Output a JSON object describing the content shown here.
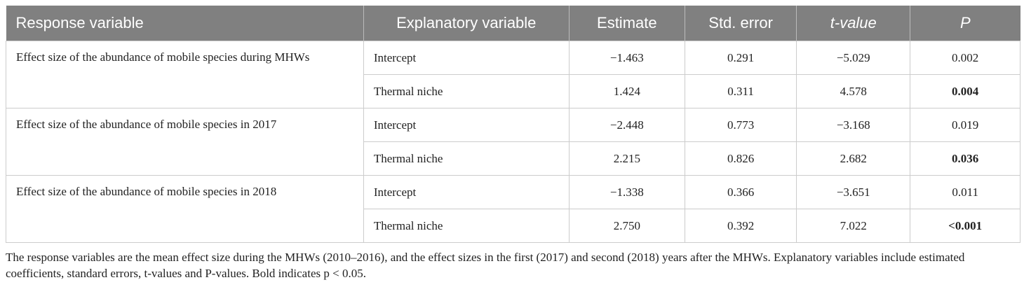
{
  "table": {
    "header": [
      "Response variable",
      "Explanatory variable",
      "Estimate",
      "Std. error",
      "t-value",
      "P"
    ],
    "groups": [
      {
        "response": "Effect size of the abundance of mobile species during MHWs",
        "rows": [
          {
            "explanatory": "Intercept",
            "estimate": "−1.463",
            "std_error": "0.291",
            "t_value": "−5.029",
            "p": "0.002",
            "p_bold": false
          },
          {
            "explanatory": "Thermal niche",
            "estimate": "1.424",
            "std_error": "0.311",
            "t_value": "4.578",
            "p": "0.004",
            "p_bold": true
          }
        ]
      },
      {
        "response": "Effect size of the abundance of mobile species in 2017",
        "rows": [
          {
            "explanatory": "Intercept",
            "estimate": "−2.448",
            "std_error": "0.773",
            "t_value": "−3.168",
            "p": "0.019",
            "p_bold": false
          },
          {
            "explanatory": "Thermal niche",
            "estimate": "2.215",
            "std_error": "0.826",
            "t_value": "2.682",
            "p": "0.036",
            "p_bold": true
          }
        ]
      },
      {
        "response": "Effect size of the abundance of mobile species in 2018",
        "rows": [
          {
            "explanatory": "Intercept",
            "estimate": "−1.338",
            "std_error": "0.366",
            "t_value": "−3.651",
            "p": "0.011",
            "p_bold": false
          },
          {
            "explanatory": "Thermal niche",
            "estimate": "2.750",
            "std_error": "0.392",
            "t_value": "7.022",
            "p": "<0.001",
            "p_bold": true
          }
        ]
      }
    ]
  },
  "footnote": "The response variables are the mean effect size during the MHWs (2010–2016), and the effect sizes in the first (2017) and second (2018) years after the MHWs. Explanatory variables include estimated coefficients, standard errors, t-values and P-values. Bold indicates p < 0.05."
}
